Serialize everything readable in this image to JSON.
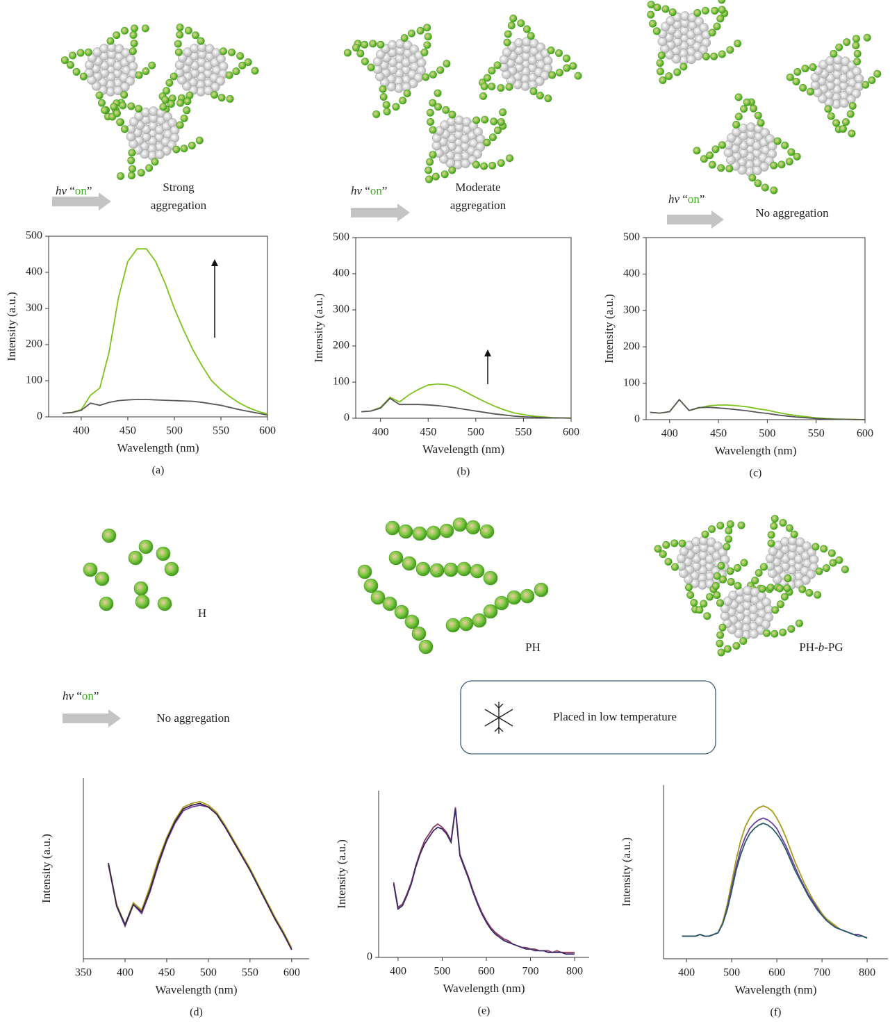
{
  "scenes": [
    {
      "trigger": {
        "symbol": "hν",
        "open": "“",
        "on": "on",
        "close": "”"
      },
      "caption": [
        "Strong",
        "aggregation"
      ]
    },
    {
      "trigger": {
        "symbol": "hν",
        "open": "“",
        "on": "on",
        "close": "”"
      },
      "caption": [
        "Moderate",
        "aggregation"
      ]
    },
    {
      "trigger": {
        "symbol": "hν",
        "open": "“",
        "on": "on",
        "close": "”"
      },
      "caption": [
        "No aggregation"
      ]
    },
    {
      "trigger": {
        "symbol": "hν",
        "open": "“",
        "on": "on",
        "close": "”"
      },
      "caption": [
        "No aggregation"
      ]
    }
  ],
  "species": [
    {
      "label": [
        "H"
      ]
    },
    {
      "label": [
        "PH"
      ]
    },
    {
      "label": [
        "PH-",
        "b",
        "-PG"
      ]
    }
  ],
  "low_temperature": "Placed in low temperature",
  "chart_data": [
    {
      "type": "line",
      "caption": "(a)",
      "x_label": "Wavelength (nm)",
      "y_label": "Intensity (a.u.)",
      "xlim": [
        365,
        600
      ],
      "ylim": [
        0,
        500
      ],
      "xticks": [
        400,
        450,
        500,
        550,
        600
      ],
      "yticks": [
        0,
        100,
        200,
        300,
        400,
        500
      ],
      "x": [
        380,
        390,
        400,
        410,
        420,
        430,
        440,
        450,
        460,
        470,
        480,
        490,
        500,
        510,
        520,
        530,
        540,
        550,
        560,
        570,
        580,
        590,
        600
      ],
      "series": [
        {
          "color": "#7cc21b",
          "values": [
            10,
            12,
            20,
            60,
            80,
            180,
            330,
            430,
            465,
            465,
            430,
            370,
            300,
            240,
            185,
            140,
            100,
            75,
            55,
            38,
            25,
            15,
            8
          ]
        },
        {
          "color": "#555555",
          "values": [
            10,
            12,
            18,
            38,
            32,
            40,
            45,
            47,
            48,
            48,
            47,
            46,
            45,
            44,
            43,
            40,
            36,
            32,
            26,
            20,
            15,
            10,
            5
          ]
        }
      ]
    },
    {
      "type": "line",
      "caption": "(b)",
      "x_label": "Wavelength (nm)",
      "y_label": "Intensity (a.u.)",
      "xlim": [
        374,
        600
      ],
      "ylim": [
        0,
        500
      ],
      "xticks": [
        400,
        450,
        500,
        550,
        600
      ],
      "yticks": [
        0,
        100,
        200,
        300,
        400,
        500
      ],
      "x": [
        380,
        390,
        400,
        410,
        420,
        430,
        440,
        450,
        460,
        470,
        480,
        490,
        500,
        510,
        520,
        530,
        540,
        550,
        560,
        570,
        580,
        590,
        600
      ],
      "series": [
        {
          "color": "#7cc21b",
          "values": [
            18,
            20,
            30,
            58,
            45,
            65,
            80,
            92,
            95,
            93,
            85,
            72,
            58,
            45,
            33,
            23,
            15,
            10,
            6,
            4,
            2,
            1,
            1
          ]
        },
        {
          "color": "#555555",
          "values": [
            18,
            20,
            28,
            55,
            38,
            38,
            38,
            37,
            35,
            32,
            28,
            24,
            20,
            16,
            12,
            9,
            6,
            4,
            3,
            2,
            1,
            1,
            0
          ]
        }
      ]
    },
    {
      "type": "line",
      "caption": "(c)",
      "x_label": "Wavelength (nm)",
      "y_label": "Intensity (a.u.)",
      "xlim": [
        376,
        600
      ],
      "ylim": [
        0,
        500
      ],
      "xticks": [
        400,
        450,
        500,
        550,
        600
      ],
      "yticks": [
        0,
        100,
        200,
        300,
        400,
        500
      ],
      "x": [
        380,
        390,
        400,
        410,
        420,
        430,
        440,
        450,
        460,
        470,
        480,
        490,
        500,
        510,
        520,
        530,
        540,
        550,
        560,
        570,
        580,
        590,
        600
      ],
      "series": [
        {
          "color": "#7cc21b",
          "values": [
            20,
            18,
            22,
            55,
            25,
            32,
            38,
            40,
            40,
            38,
            35,
            30,
            26,
            20,
            15,
            11,
            8,
            5,
            3,
            2,
            1,
            1,
            0
          ]
        },
        {
          "color": "#555555",
          "values": [
            20,
            18,
            22,
            55,
            25,
            33,
            34,
            32,
            30,
            27,
            24,
            20,
            17,
            13,
            10,
            7,
            5,
            3,
            2,
            1,
            1,
            0,
            0
          ]
        }
      ]
    },
    {
      "type": "line",
      "caption": "(d)",
      "x_label": "Wavelength (nm)",
      "y_label": "Intensity (a.u.)",
      "xlim": [
        350,
        621
      ],
      "ylim": [
        0,
        100
      ],
      "xticks": [
        350,
        400,
        450,
        500,
        550,
        600
      ],
      "x": [
        380,
        390,
        400,
        410,
        420,
        430,
        440,
        450,
        460,
        470,
        480,
        490,
        500,
        510,
        520,
        530,
        540,
        550,
        560,
        570,
        580,
        590,
        600
      ],
      "series": [
        {
          "color": "#a89a1c",
          "values": [
            53,
            30,
            19,
            31,
            27,
            40,
            55,
            67,
            77,
            84,
            86,
            87,
            85,
            81,
            74,
            66,
            58,
            50,
            41,
            32,
            23,
            15,
            6
          ]
        },
        {
          "color": "#6b3fa0",
          "values": [
            52,
            29,
            18,
            30,
            25,
            37,
            52,
            65,
            75,
            82,
            84,
            85,
            84,
            80,
            73,
            65,
            57,
            49,
            40,
            31,
            22,
            14,
            5
          ]
        },
        {
          "color": "#3a2345",
          "values": [
            53,
            29,
            19,
            30,
            26,
            38,
            53,
            66,
            76,
            83,
            85,
            86,
            84,
            80,
            73,
            65,
            57,
            49,
            40,
            31,
            22,
            14,
            5
          ]
        }
      ]
    },
    {
      "type": "line",
      "caption": "(e)",
      "x_label": "Wavelength (nm)",
      "y_label": "Intensity (a.u.)",
      "xlim": [
        356,
        833
      ],
      "ylim": [
        0,
        100
      ],
      "xticks": [
        400,
        500,
        600,
        700,
        800
      ],
      "yticks": [
        0
      ],
      "x": [
        390,
        400,
        410,
        420,
        430,
        440,
        450,
        460,
        470,
        480,
        490,
        500,
        510,
        520,
        530,
        540,
        550,
        560,
        570,
        580,
        590,
        600,
        610,
        620,
        630,
        640,
        650,
        660,
        670,
        680,
        690,
        700,
        710,
        720,
        730,
        740,
        750,
        760,
        770,
        780,
        790,
        800
      ],
      "series": [
        {
          "color": "#8a3a5a",
          "values": [
            45,
            30,
            32,
            38,
            45,
            55,
            63,
            70,
            74,
            78,
            80,
            78,
            75,
            70,
            90,
            62,
            55,
            48,
            40,
            33,
            27,
            22,
            18,
            15,
            13,
            11,
            10,
            8,
            7,
            6,
            6,
            5,
            5,
            4,
            4,
            4,
            3,
            4,
            3,
            3,
            3,
            3
          ]
        },
        {
          "color": "#3b2a6a",
          "values": [
            44,
            29,
            31,
            37,
            44,
            54,
            62,
            68,
            72,
            76,
            78,
            77,
            74,
            69,
            89,
            61,
            54,
            47,
            39,
            32,
            26,
            21,
            17,
            14,
            12,
            10,
            9,
            8,
            7,
            6,
            5,
            5,
            4,
            4,
            4,
            3,
            3,
            3,
            3,
            2,
            2,
            2
          ]
        }
      ]
    },
    {
      "type": "line",
      "caption": "(f)",
      "x_label": "Wavelength (nm)",
      "y_label": "Intensity (a.u.)",
      "xlim": [
        349,
        846
      ],
      "ylim": [
        0,
        100
      ],
      "xticks": [
        400,
        500,
        600,
        700,
        800
      ],
      "x": [
        390,
        400,
        410,
        420,
        430,
        440,
        450,
        460,
        470,
        480,
        490,
        500,
        510,
        520,
        530,
        540,
        550,
        560,
        570,
        580,
        590,
        600,
        610,
        620,
        630,
        640,
        650,
        660,
        670,
        680,
        690,
        700,
        710,
        720,
        730,
        740,
        750,
        760,
        770,
        780,
        790,
        800
      ],
      "series": [
        {
          "color": "#a89a1c",
          "values": [
            13,
            13,
            13,
            13,
            14,
            13,
            13,
            14,
            15,
            21,
            31,
            44,
            57,
            68,
            76,
            81,
            85,
            87,
            88,
            87,
            85,
            81,
            76,
            70,
            63,
            56,
            50,
            44,
            39,
            34,
            30,
            26,
            23,
            21,
            19,
            17,
            16,
            15,
            14,
            14,
            13,
            12
          ]
        },
        {
          "color": "#6b3fa0",
          "values": [
            13,
            13,
            13,
            13,
            14,
            13,
            13,
            14,
            15,
            20,
            29,
            41,
            53,
            63,
            70,
            75,
            78,
            80,
            81,
            80,
            78,
            75,
            70,
            65,
            59,
            53,
            47,
            42,
            37,
            33,
            29,
            25,
            22,
            20,
            18,
            17,
            16,
            15,
            14,
            14,
            13,
            12
          ]
        },
        {
          "color": "#2a5a6a",
          "values": [
            13,
            13,
            13,
            13,
            14,
            13,
            13,
            14,
            15,
            20,
            28,
            39,
            51,
            60,
            67,
            72,
            75,
            77,
            78,
            77,
            75,
            72,
            68,
            63,
            57,
            51,
            46,
            41,
            36,
            32,
            28,
            25,
            22,
            20,
            18,
            17,
            16,
            15,
            14,
            13,
            13,
            12
          ]
        }
      ]
    }
  ]
}
